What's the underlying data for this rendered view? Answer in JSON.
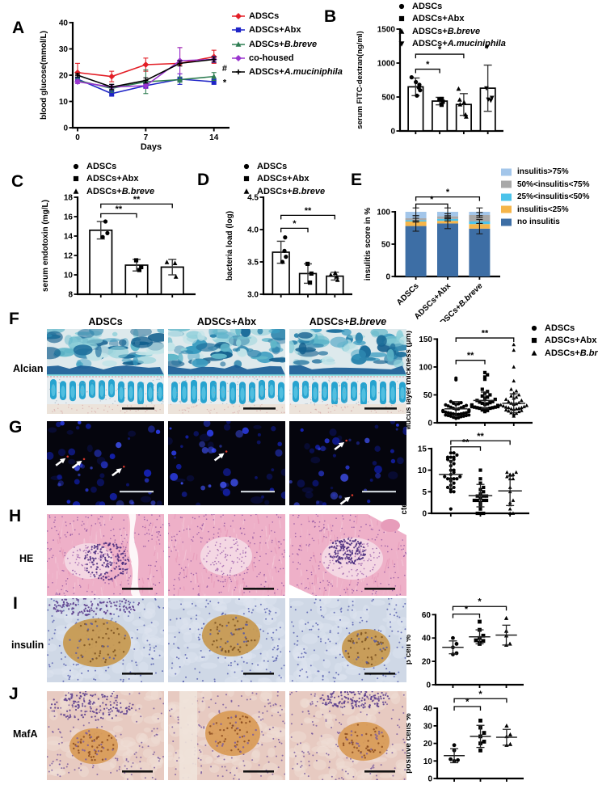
{
  "panels": {
    "A": {
      "label": "A"
    },
    "B": {
      "label": "B"
    },
    "C": {
      "label": "C"
    },
    "D": {
      "label": "D"
    },
    "E": {
      "label": "E"
    },
    "F": {
      "label": "F"
    },
    "G": {
      "label": "G"
    },
    "H": {
      "label": "H"
    },
    "I": {
      "label": "I"
    },
    "J": {
      "label": "J"
    }
  },
  "rows": {
    "F": {
      "row_label": "Alcian",
      "columns": [
        {
          "pre": "ADSCs"
        },
        {
          "pre": "ADSCs+Abx"
        },
        {
          "pre": "ADSCs+",
          "it": "B.breve"
        }
      ]
    },
    "G": {
      "arrows": [
        [
          {
            "x": 0.16,
            "y": 0.44
          },
          {
            "x": 0.3,
            "y": 0.47
          },
          {
            "x": 0.64,
            "y": 0.56
          }
        ],
        [
          {
            "x": 0.48,
            "y": 0.38
          }
        ],
        [
          {
            "x": 0.47,
            "y": 0.25
          },
          {
            "x": 0.52,
            "y": 0.9
          }
        ]
      ]
    },
    "H": {
      "row_label": "HE"
    },
    "I": {
      "row_label": "insulin"
    },
    "J": {
      "row_label": "MafA"
    }
  },
  "legends": {
    "A": {
      "items": [
        {
          "line": "#e31e26",
          "shape": "diamond",
          "pre": "ADSCs"
        },
        {
          "line": "#1f24c7",
          "shape": "square",
          "pre": "ADSCs+Abx"
        },
        {
          "line": "#2e7d52",
          "shape": "triangle",
          "pre": "ADSCs+",
          "it": "B.breve"
        },
        {
          "line": "#9a35cf",
          "shape": "diamond",
          "pre": "co-housed"
        },
        {
          "line": "#000000",
          "shape": "plus",
          "pre": "ADSCs+",
          "it": "A.muciniphila"
        }
      ]
    },
    "B": {
      "items": [
        {
          "shape": "circle",
          "pre": "ADSCs"
        },
        {
          "shape": "square",
          "pre": "ADSCs+Abx"
        },
        {
          "shape": "triangle",
          "pre": "ADSCs+",
          "it": "B.breve"
        },
        {
          "shape": "triangle-down",
          "pre": "ADSCs+",
          "it": "A.muciniphila"
        }
      ]
    },
    "CDF": {
      "items": [
        {
          "shape": "circle",
          "pre": "ADSCs"
        },
        {
          "shape": "square",
          "pre": "ADSCs+Abx"
        },
        {
          "shape": "triangle",
          "pre": "ADSCs+",
          "it": "B.breve"
        }
      ]
    },
    "E": {
      "items": [
        {
          "swatch": "#a3c6ea",
          "pre": "insulitis>75%"
        },
        {
          "swatch": "#a8a8a8",
          "pre": "50%<insulitis<75%"
        },
        {
          "swatch": "#4cc3ea",
          "pre": "25%<insulitis<50%"
        },
        {
          "swatch": "#f5b54a",
          "pre": "insulitis<25%"
        },
        {
          "swatch": "#3d6ea5",
          "pre": "no insulitis"
        }
      ]
    }
  },
  "chart_data": {
    "A": {
      "type": "line",
      "ylabel": "blood glucose(mmol/L)",
      "xlabel": "Days",
      "ylim": [
        0,
        40
      ],
      "yticks": [
        0,
        10,
        20,
        30,
        40
      ],
      "xlim": [
        -0.5,
        15.6
      ],
      "xticks": [
        0,
        7,
        14
      ],
      "x": [
        0,
        3.5,
        7,
        10.5,
        14
      ],
      "series": [
        {
          "name": "ADSCs",
          "color": "#e31e26",
          "marker": "diamond",
          "values": [
            21,
            19.5,
            24,
            24.5,
            27
          ],
          "err": [
            3.5,
            2,
            2.5,
            6,
            2.5
          ]
        },
        {
          "name": "ADSCs+Abx",
          "color": "#1f24c7",
          "marker": "square",
          "values": [
            18.5,
            13,
            16,
            18.5,
            17.5
          ],
          "err": [
            0.7,
            1,
            1,
            2,
            1
          ]
        },
        {
          "name": "ADSCs+B.breve",
          "color": "#2e7d52",
          "marker": "triangle",
          "values": [
            18,
            15,
            17.5,
            18.3,
            19.5
          ],
          "err": [
            0.7,
            1.5,
            4.5,
            1,
            1.5
          ]
        },
        {
          "name": "co-housed",
          "color": "#9a35cf",
          "marker": "diamond",
          "values": [
            17.5,
            15.5,
            16,
            25.5,
            26
          ],
          "err": [
            0.7,
            1,
            1,
            5,
            1.2
          ]
        },
        {
          "name": "ADSCs+A.muciniphila",
          "color": "#000000",
          "marker": "plus",
          "values": [
            20,
            15.5,
            18,
            24.5,
            26
          ],
          "err": [
            0.7,
            1,
            1,
            1,
            1
          ]
        }
      ],
      "annotations": [
        {
          "text": "#",
          "x": 15.1,
          "y": 21.5
        },
        {
          "text": "*",
          "x": 15.1,
          "y": 16.2
        }
      ]
    },
    "B": {
      "type": "bar-scatter",
      "ylabel": "serum FITC-dextran(ng/ml)",
      "ylabel_size": 9.5,
      "ylim": [
        0,
        1500
      ],
      "yticks": [
        0,
        500,
        1000,
        1500
      ],
      "groups": [
        {
          "marker": "circle",
          "bar": 650,
          "err": 130,
          "points": [
            520,
            600,
            640,
            680,
            720,
            790
          ]
        },
        {
          "marker": "square",
          "bar": 440,
          "err": 55,
          "points": [
            385,
            430,
            465,
            470
          ]
        },
        {
          "marker": "triangle",
          "bar": 390,
          "err": 160,
          "points": [
            210,
            240,
            390,
            420,
            460,
            620
          ]
        },
        {
          "marker": "triangle-down",
          "bar": 630,
          "err": 340,
          "points": [
            450,
            465,
            490,
            630,
            1240
          ]
        }
      ],
      "sig": [
        {
          "a": 0,
          "b": 1,
          "y": 910,
          "label": "*"
        },
        {
          "a": 0,
          "b": 2,
          "y": 1130,
          "label": "*"
        }
      ]
    },
    "C": {
      "type": "bar-scatter",
      "ylabel": "serum endotoxin (mg/L)",
      "ylim": [
        8,
        18
      ],
      "yticks": [
        8,
        10,
        12,
        14,
        16,
        18
      ],
      "groups": [
        {
          "marker": "circle",
          "bar": 14.6,
          "err": 0.9,
          "points": [
            13.9,
            14.3,
            15.5
          ]
        },
        {
          "marker": "square",
          "bar": 11.0,
          "err": 0.6,
          "points": [
            10.5,
            10.8,
            11.5
          ]
        },
        {
          "marker": "triangle",
          "bar": 10.8,
          "err": 0.8,
          "points": [
            9.8,
            11.2,
            11.3
          ]
        }
      ],
      "sig": [
        {
          "a": 0,
          "b": 1,
          "y": 16.3,
          "label": "**"
        },
        {
          "a": 0,
          "b": 2,
          "y": 17.3,
          "label": "**"
        }
      ]
    },
    "D": {
      "type": "bar-scatter",
      "ylabel": "bacteria load (log)",
      "ylim": [
        3,
        4.5
      ],
      "yticks": [
        {
          "v": 3,
          "t": "3.0"
        },
        {
          "v": 3.5,
          "t": "3.5"
        },
        {
          "v": 4,
          "t": "4.0"
        },
        {
          "v": 4.5,
          "t": "4.5"
        }
      ],
      "groups": [
        {
          "marker": "circle",
          "bar": 3.65,
          "err": 0.17,
          "points": [
            3.5,
            3.58,
            3.67,
            3.88
          ]
        },
        {
          "marker": "square",
          "bar": 3.32,
          "err": 0.15,
          "points": [
            3.18,
            3.32,
            3.47
          ]
        },
        {
          "marker": "triangle",
          "bar": 3.28,
          "err": 0.06,
          "points": [
            3.22,
            3.27,
            3.3,
            3.33
          ]
        }
      ],
      "sig": [
        {
          "a": 0,
          "b": 1,
          "y": 4.02,
          "label": "*"
        },
        {
          "a": 0,
          "b": 2,
          "y": 4.22,
          "label": "**"
        }
      ]
    },
    "E": {
      "type": "stacked-bar",
      "ylabel": "insulitis score in %",
      "ylim": [
        0,
        130
      ],
      "axis_top": 100,
      "yticks": [
        0,
        50,
        100
      ],
      "categories": [
        {
          "pre": "ADSCs"
        },
        {
          "pre": "ADSCs+Abx"
        },
        {
          "pre": "ADSCs+",
          "it": "B.breve"
        }
      ],
      "series_bottom_up": [
        {
          "name": "no insulitis",
          "color": "#3d6ea5",
          "values": [
            78,
            82,
            74
          ]
        },
        {
          "name": "insulitis<25%",
          "color": "#f5b54a",
          "values": [
            7,
            4,
            7
          ]
        },
        {
          "name": "25%<insulitis<50%",
          "color": "#4cc3ea",
          "values": [
            2,
            3,
            4
          ]
        },
        {
          "name": "50%<insulitis<75%",
          "color": "#a8a8a8",
          "values": [
            3,
            4,
            10
          ]
        },
        {
          "name": "insulitis>75%",
          "color": "#a3c6ea",
          "values": [
            10,
            7,
            5
          ]
        }
      ],
      "seg_err": [
        8,
        0,
        3,
        4,
        6
      ],
      "sig": [
        {
          "a": 0,
          "b": 1,
          "y": 112,
          "label": "*"
        },
        {
          "a": 0,
          "b": 2,
          "y": 123,
          "label": "*"
        }
      ]
    },
    "F": {
      "type": "dot-scatter",
      "ylabel": "Mucus layer thickness (μm)",
      "ylabel_size": 9.5,
      "ylim": [
        0,
        168
      ],
      "axis_top": 150,
      "yticks": [
        0,
        50,
        100,
        150
      ],
      "dot_r": 2.1,
      "dot_spacing": 3.2,
      "groups": [
        {
          "marker": "circle",
          "mean": 25,
          "sd": 13,
          "points": [
            8,
            9,
            10,
            11,
            12,
            12,
            13,
            13,
            14,
            14,
            15,
            15,
            16,
            16,
            17,
            17,
            18,
            18,
            19,
            20,
            20,
            21,
            22,
            23,
            24,
            25,
            26,
            27,
            28,
            29,
            30,
            31,
            32,
            33,
            34,
            35,
            36,
            38,
            77,
            80
          ]
        },
        {
          "marker": "square",
          "mean": 40,
          "sd": 15,
          "points": [
            20,
            22,
            23,
            24,
            25,
            25,
            26,
            26,
            27,
            27,
            28,
            28,
            29,
            29,
            30,
            30,
            31,
            32,
            33,
            34,
            35,
            36,
            37,
            38,
            40,
            42,
            44,
            46,
            48,
            50,
            53,
            56,
            60,
            78,
            82,
            86,
            90
          ]
        },
        {
          "marker": "triangle",
          "mean": 35,
          "sd": 17,
          "points": [
            12,
            15,
            17,
            18,
            20,
            21,
            22,
            23,
            24,
            25,
            25,
            26,
            27,
            27,
            28,
            29,
            30,
            31,
            32,
            33,
            34,
            35,
            36,
            38,
            40,
            42,
            44,
            46,
            48,
            50,
            53,
            57,
            60,
            75,
            100,
            130,
            140
          ]
        }
      ],
      "sig": [
        {
          "a": 0,
          "b": 1,
          "y": 112,
          "label": "**"
        },
        {
          "a": 0,
          "b": 2,
          "y": 152,
          "label": "**"
        }
      ]
    },
    "G": {
      "type": "dot-scatter",
      "ylabel": "bacteria number / field",
      "ylim": [
        0,
        17.6
      ],
      "axis_top": 15,
      "yticks": [
        0,
        5,
        10,
        15
      ],
      "dot_r": 2.1,
      "dot_spacing": 3.8,
      "groups": [
        {
          "marker": "circle",
          "mean": 9,
          "sd": 3.2,
          "points": [
            1,
            5,
            5,
            5.5,
            6,
            6,
            6.5,
            7,
            7.5,
            8,
            8,
            8,
            8,
            8.5,
            8.5,
            9,
            9.5,
            10,
            10,
            11,
            11.5,
            12,
            12.5,
            12.5,
            13,
            13,
            13,
            13.5,
            14,
            14
          ]
        },
        {
          "marker": "square",
          "mean": 4.1,
          "sd": 2.6,
          "points": [
            0,
            0,
            0,
            1,
            2,
            2.5,
            3,
            3,
            3,
            3,
            3.5,
            4,
            4,
            4,
            4.5,
            5,
            5.5,
            6,
            7,
            8,
            10
          ]
        },
        {
          "marker": "triangle",
          "mean": 5.2,
          "sd": 3.4,
          "points": [
            0,
            0,
            1,
            2,
            2.5,
            3,
            5,
            6,
            8,
            8,
            8.5,
            9,
            9,
            9.5,
            9.5
          ]
        }
      ],
      "sig": [
        {
          "a": 0,
          "b": 1,
          "y": 15.4,
          "label": "**"
        },
        {
          "a": 0,
          "b": 2,
          "y": 16.8,
          "label": "**"
        }
      ]
    },
    "I": {
      "type": "dot-scatter",
      "ylabel": "β cell %",
      "ylim": [
        0,
        72
      ],
      "axis_top": 60,
      "yticks": [
        0,
        20,
        40,
        60
      ],
      "dot_r": 2.4,
      "dot_spacing": 4.5,
      "groups": [
        {
          "marker": "circle",
          "mean": 32,
          "sd": 5.5,
          "points": [
            26,
            27,
            32,
            35,
            40
          ]
        },
        {
          "marker": "square",
          "mean": 41,
          "sd": 6,
          "points": [
            35,
            36,
            37.5,
            38,
            40,
            42,
            47,
            54
          ]
        },
        {
          "marker": "triangle",
          "mean": 42.5,
          "sd": 8.5,
          "points": [
            34,
            35,
            42,
            46,
            57
          ]
        }
      ],
      "sig": [
        {
          "a": 0,
          "b": 1,
          "y": 60.5,
          "label": "*"
        },
        {
          "a": 0,
          "b": 2,
          "y": 67,
          "label": "*"
        }
      ]
    },
    "J": {
      "type": "dot-scatter",
      "ylabel": "positive cells %",
      "ylim": [
        0,
        47
      ],
      "axis_top": 40,
      "yticks": [
        0,
        10,
        20,
        30,
        40
      ],
      "dot_r": 2.4,
      "dot_spacing": 4.5,
      "groups": [
        {
          "marker": "circle",
          "mean": 13,
          "sd": 4,
          "points": [
            10,
            10.5,
            11,
            16,
            19
          ]
        },
        {
          "marker": "square",
          "mean": 24,
          "sd": 6.3,
          "points": [
            16,
            20,
            21,
            24,
            26,
            29,
            33
          ]
        },
        {
          "marker": "triangle",
          "mean": 23.5,
          "sd": 4.5,
          "points": [
            19,
            19.5,
            24,
            25,
            30
          ]
        }
      ],
      "sig": [
        {
          "a": 0,
          "b": 1,
          "y": 41,
          "label": "*"
        },
        {
          "a": 0,
          "b": 2,
          "y": 45.5,
          "label": "*"
        }
      ]
    }
  }
}
